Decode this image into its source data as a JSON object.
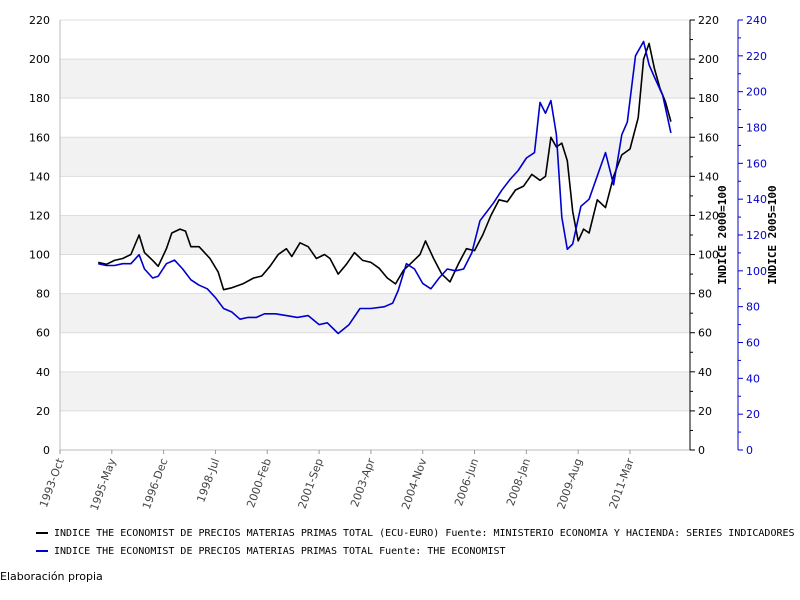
{
  "chart_data": {
    "type": "line",
    "x_ticks": [
      "1993-Oct",
      "1995-May",
      "1996-Dec",
      "1998-Jul",
      "2000-Feb",
      "2001-Sep",
      "2003-Apr",
      "2004-Nov",
      "2006-Jun",
      "2008-Jan",
      "2009-Aug",
      "2011-Mar"
    ],
    "xlim": [
      "1993-10",
      "2013-01"
    ],
    "y_left": {
      "lim": [
        0,
        220
      ],
      "ticks": [
        0,
        20,
        40,
        60,
        80,
        100,
        120,
        140,
        160,
        180,
        200,
        220
      ]
    },
    "y_right1": {
      "label": "INDICE 2000=100",
      "lim": [
        0,
        220
      ],
      "ticks": [
        0,
        20,
        40,
        60,
        80,
        100,
        120,
        140,
        160,
        180,
        200,
        220
      ],
      "color": "#000000"
    },
    "y_right2": {
      "label": "INDICE 2005=100",
      "lim": [
        0,
        240
      ],
      "ticks": [
        0,
        20,
        40,
        60,
        80,
        100,
        120,
        140,
        160,
        180,
        200,
        220,
        240
      ],
      "color": "#0000cc"
    },
    "grid": "horizontal bands",
    "legend_position": "bottom",
    "series": [
      {
        "name": "INDICE THE ECONOMIST DE PRECIOS MATERIAS PRIMAS TOTAL (ECU-EURO)  Fuente: MINISTERIO ECONOMIA Y HACIENDA: SERIES INDICADORES",
        "color": "#000000",
        "axis": "y_right1",
        "points": [
          [
            "1994-12",
            96
          ],
          [
            "1995-03",
            95
          ],
          [
            "1995-06",
            97
          ],
          [
            "1995-09",
            98
          ],
          [
            "1995-12",
            100
          ],
          [
            "1996-03",
            110
          ],
          [
            "1996-05",
            101
          ],
          [
            "1996-08",
            97
          ],
          [
            "1996-10",
            94
          ],
          [
            "1997-01",
            103
          ],
          [
            "1997-03",
            111
          ],
          [
            "1997-06",
            113
          ],
          [
            "1997-08",
            112
          ],
          [
            "1997-10",
            104
          ],
          [
            "1998-01",
            104
          ],
          [
            "1998-05",
            98
          ],
          [
            "1998-08",
            91
          ],
          [
            "1998-10",
            82
          ],
          [
            "1999-01",
            83
          ],
          [
            "1999-05",
            85
          ],
          [
            "1999-09",
            88
          ],
          [
            "1999-12",
            89
          ],
          [
            "2000-03",
            94
          ],
          [
            "2000-06",
            100
          ],
          [
            "2000-09",
            103
          ],
          [
            "2000-11",
            99
          ],
          [
            "2001-02",
            106
          ],
          [
            "2001-05",
            104
          ],
          [
            "2001-08",
            98
          ],
          [
            "2001-11",
            100
          ],
          [
            "2002-01",
            98
          ],
          [
            "2002-04",
            90
          ],
          [
            "2002-07",
            95
          ],
          [
            "2002-10",
            101
          ],
          [
            "2003-01",
            97
          ],
          [
            "2003-04",
            96
          ],
          [
            "2003-07",
            93
          ],
          [
            "2003-10",
            88
          ],
          [
            "2004-01",
            85
          ],
          [
            "2004-04",
            92
          ],
          [
            "2004-07",
            96
          ],
          [
            "2004-10",
            100
          ],
          [
            "2004-12",
            107
          ],
          [
            "2005-03",
            98
          ],
          [
            "2005-06",
            90
          ],
          [
            "2005-09",
            86
          ],
          [
            "2005-12",
            95
          ],
          [
            "2006-03",
            103
          ],
          [
            "2006-06",
            102
          ],
          [
            "2006-09",
            110
          ],
          [
            "2006-12",
            120
          ],
          [
            "2007-03",
            128
          ],
          [
            "2007-06",
            127
          ],
          [
            "2007-09",
            133
          ],
          [
            "2007-12",
            135
          ],
          [
            "2008-03",
            141
          ],
          [
            "2008-06",
            138
          ],
          [
            "2008-08",
            140
          ],
          [
            "2008-10",
            160
          ],
          [
            "2008-12",
            155
          ],
          [
            "2009-02",
            157
          ],
          [
            "2009-04",
            148
          ],
          [
            "2009-06",
            122
          ],
          [
            "2009-08",
            107
          ],
          [
            "2009-10",
            113
          ],
          [
            "2009-12",
            111
          ],
          [
            "2010-03",
            128
          ],
          [
            "2010-06",
            124
          ],
          [
            "2010-09",
            140
          ],
          [
            "2010-12",
            151
          ],
          [
            "2011-03",
            154
          ],
          [
            "2011-06",
            170
          ],
          [
            "2011-08",
            200
          ],
          [
            "2011-10",
            208
          ],
          [
            "2011-12",
            195
          ],
          [
            "2012-02",
            185
          ],
          [
            "2012-04",
            178
          ],
          [
            "2012-06",
            168
          ]
        ]
      },
      {
        "name": "INDICE THE ECONOMIST DE PRECIOS MATERIAS PRIMAS TOTAL  Fuente: THE ECONOMIST",
        "color": "#0000cc",
        "axis": "y_right2",
        "points": [
          [
            "1994-12",
            104
          ],
          [
            "1995-03",
            103
          ],
          [
            "1995-06",
            103
          ],
          [
            "1995-09",
            104
          ],
          [
            "1995-12",
            104
          ],
          [
            "1996-03",
            109
          ],
          [
            "1996-05",
            101
          ],
          [
            "1996-08",
            96
          ],
          [
            "1996-10",
            97
          ],
          [
            "1997-01",
            104
          ],
          [
            "1997-04",
            106
          ],
          [
            "1997-07",
            101
          ],
          [
            "1997-10",
            95
          ],
          [
            "1998-01",
            92
          ],
          [
            "1998-04",
            90
          ],
          [
            "1998-07",
            85
          ],
          [
            "1998-10",
            79
          ],
          [
            "1999-01",
            77
          ],
          [
            "1999-04",
            73
          ],
          [
            "1999-07",
            74
          ],
          [
            "1999-10",
            74
          ],
          [
            "2000-01",
            76
          ],
          [
            "2000-05",
            76
          ],
          [
            "2000-09",
            75
          ],
          [
            "2001-01",
            74
          ],
          [
            "2001-05",
            75
          ],
          [
            "2001-09",
            70
          ],
          [
            "2001-12",
            71
          ],
          [
            "2002-04",
            65
          ],
          [
            "2002-08",
            70
          ],
          [
            "2002-12",
            79
          ],
          [
            "2003-04",
            79
          ],
          [
            "2003-09",
            80
          ],
          [
            "2003-12",
            82
          ],
          [
            "2004-02",
            89
          ],
          [
            "2004-05",
            104
          ],
          [
            "2004-08",
            101
          ],
          [
            "2004-11",
            93
          ],
          [
            "2005-02",
            90
          ],
          [
            "2005-05",
            96
          ],
          [
            "2005-08",
            101
          ],
          [
            "2005-11",
            100
          ],
          [
            "2006-02",
            101
          ],
          [
            "2006-05",
            110
          ],
          [
            "2006-08",
            128
          ],
          [
            "2006-10",
            132
          ],
          [
            "2007-01",
            138
          ],
          [
            "2007-04",
            145
          ],
          [
            "2007-07",
            151
          ],
          [
            "2007-10",
            156
          ],
          [
            "2008-01",
            163
          ],
          [
            "2008-04",
            166
          ],
          [
            "2008-06",
            194
          ],
          [
            "2008-08",
            188
          ],
          [
            "2008-10",
            195
          ],
          [
            "2008-12",
            176
          ],
          [
            "2009-02",
            130
          ],
          [
            "2009-04",
            112
          ],
          [
            "2009-06",
            115
          ],
          [
            "2009-09",
            136
          ],
          [
            "2009-12",
            140
          ],
          [
            "2010-03",
            153
          ],
          [
            "2010-06",
            166
          ],
          [
            "2010-09",
            148
          ],
          [
            "2010-12",
            176
          ],
          [
            "2011-02",
            183
          ],
          [
            "2011-05",
            220
          ],
          [
            "2011-08",
            228
          ],
          [
            "2011-10",
            215
          ],
          [
            "2011-12",
            208
          ],
          [
            "2012-03",
            198
          ],
          [
            "2012-06",
            177
          ]
        ]
      }
    ]
  },
  "footnote": "Elaboración propia"
}
